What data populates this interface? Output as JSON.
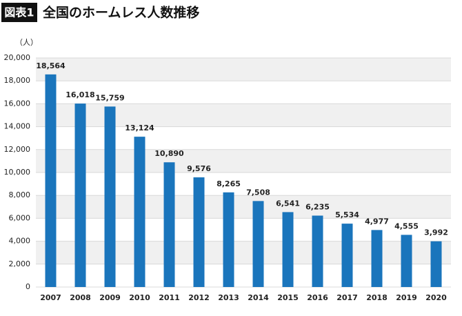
{
  "chart_data": {
    "type": "bar",
    "figure_label": "図表1",
    "title": "全国のホームレス人数推移",
    "y_unit": "（人）",
    "categories": [
      "2007",
      "2008",
      "2009",
      "2010",
      "2011",
      "2012",
      "2013",
      "2014",
      "2015",
      "2016",
      "2017",
      "2018",
      "2019",
      "2020"
    ],
    "values": [
      18564,
      16018,
      15759,
      13124,
      10890,
      9576,
      8265,
      7508,
      6541,
      6235,
      5534,
      4977,
      4555,
      3992
    ],
    "value_labels": [
      "18,564",
      "16,018",
      "15,759",
      "13,124",
      "10,890",
      "9,576",
      "8,265",
      "7,508",
      "6,541",
      "6,235",
      "5,534",
      "4,977",
      "4,555",
      "3,992"
    ],
    "color": "#1a75bc",
    "ylim": [
      0,
      20000
    ],
    "yticks": [
      0,
      {
        "value": 2000,
        "label": "2,000"
      },
      {
        "value": 4000,
        "label": "4,000"
      },
      {
        "value": 6000,
        "label": "6,000"
      },
      {
        "value": 8000,
        "label": "8,000"
      },
      {
        "value": 10000,
        "label": "10,000"
      },
      {
        "value": 12000,
        "label": "12,000"
      },
      {
        "value": 14000,
        "label": "14,000"
      },
      {
        "value": 16000,
        "label": "16,000"
      },
      {
        "value": 18000,
        "label": "18,000"
      },
      {
        "value": 20000,
        "label": "20,000"
      }
    ],
    "grid": true
  }
}
